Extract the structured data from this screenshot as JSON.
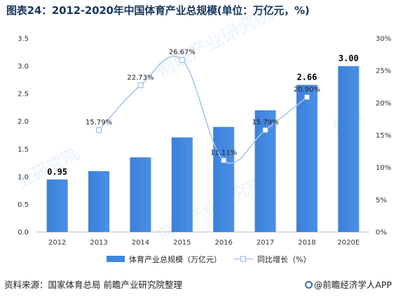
{
  "title": "图表24：2012-2020年中国体育产业总规模(单位：万亿元，%)",
  "source": "资料来源：国家体育总局 前瞻产业研究院整理",
  "brand": "@前瞻经济学人APP",
  "chart_data": {
    "type": "bar+line",
    "categories": [
      "2012",
      "2013",
      "2014",
      "2015",
      "2016",
      "2017",
      "2018",
      "2020E"
    ],
    "series": [
      {
        "name": "体育产业总规模（万亿元）",
        "type": "bar",
        "axis": "left",
        "values": [
          0.95,
          1.1,
          1.35,
          1.71,
          1.9,
          2.2,
          2.66,
          3.0
        ],
        "labels": [
          "0.95",
          "",
          "",
          "",
          "",
          "",
          "2.66",
          "3.00"
        ],
        "color": "#3f86df"
      },
      {
        "name": "同比增长（%）",
        "type": "line",
        "axis": "right",
        "values": [
          null,
          15.79,
          22.73,
          26.67,
          11.11,
          15.79,
          20.9,
          null
        ],
        "labels": [
          "",
          "15.79%",
          "22.73%",
          "26.67%",
          "11.11%",
          "15.79%",
          "20.90%",
          ""
        ],
        "color": "#a9c7ea"
      }
    ],
    "y_left": {
      "min": 0,
      "max": 3.5,
      "ticks": [
        "0.0",
        "0.5",
        "1.0",
        "1.5",
        "2.0",
        "2.5",
        "3.0",
        "3.5"
      ]
    },
    "y_right": {
      "min": 0,
      "max": 30,
      "ticks": [
        "0%",
        "5%",
        "10%",
        "15%",
        "20%",
        "25%",
        "30%"
      ]
    },
    "grid": false,
    "legend_position": "bottom"
  }
}
